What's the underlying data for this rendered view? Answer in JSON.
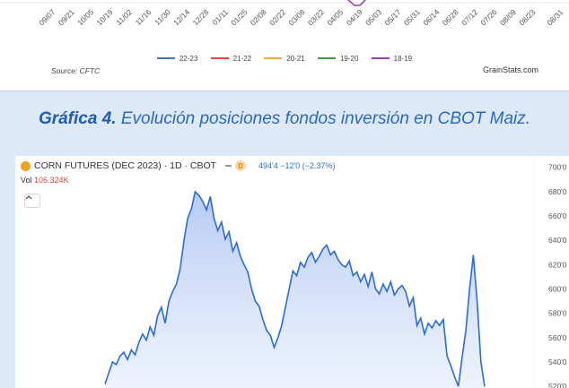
{
  "top_chart": {
    "x_ticks": [
      "09/07",
      "09/21",
      "10/05",
      "10/19",
      "11/02",
      "11/16",
      "11/30",
      "12/14",
      "12/28",
      "01/11",
      "01/25",
      "02/08",
      "02/22",
      "03/08",
      "03/22",
      "04/05",
      "04/19",
      "05/03",
      "05/17",
      "05/31",
      "06/14",
      "06/28",
      "07/12",
      "07/26",
      "08/09",
      "08/23",
      "08/31"
    ],
    "legend": [
      {
        "label": "22-23",
        "color": "#4472c4"
      },
      {
        "label": "21-22",
        "color": "#e0463b"
      },
      {
        "label": "20-21",
        "color": "#f1a93a"
      },
      {
        "label": "19-20",
        "color": "#3f9b3f"
      },
      {
        "label": "18-19",
        "color": "#9b3fb8"
      }
    ],
    "source": "Source: CFTC",
    "brand": "GrainStats.com"
  },
  "caption": {
    "label": "Gráfica 4.",
    "text": " Evolución posiciones fondos inversión en CBOT Maiz."
  },
  "tv": {
    "symbol_title": "CORN FUTURES (DEC 2023) · 1D · CBOT",
    "d_badge": "D",
    "ohlc": "494'4  −12'0  (−2.37%)",
    "vol_label": "Vol",
    "vol_value": "106.324K",
    "collapse_icon": "chevron-up-icon",
    "accent": "#2a6bd8"
  },
  "chart_data": {
    "type": "area",
    "title": "CORN FUTURES (DEC 2023) · 1D · CBOT",
    "y_ticks": [
      "700'0",
      "680'0",
      "660'0",
      "640'0",
      "620'0",
      "600'0",
      "580'0",
      "560'0",
      "540'0",
      "520'0"
    ],
    "ylim": [
      515,
      702
    ],
    "x_start_index": 100,
    "series": [
      {
        "values": [
          522,
          531,
          540,
          538,
          545,
          548,
          542,
          550,
          546,
          556,
          563,
          558,
          569,
          562,
          578,
          585,
          572,
          590,
          598,
          604,
          617,
          640,
          658,
          666,
          680,
          677,
          672,
          665,
          676,
          658,
          648,
          655,
          641,
          647,
          631,
          638,
          627,
          620,
          614,
          600,
          590,
          586,
          575,
          566,
          562,
          552,
          560,
          570,
          585,
          600,
          615,
          611,
          622,
          618,
          626,
          630,
          622,
          627,
          633,
          636,
          628,
          631,
          624,
          620,
          618,
          623,
          611,
          614,
          606,
          612,
          602,
          614,
          600,
          596,
          604,
          598,
          606,
          595,
          600,
          603,
          598,
          586,
          593,
          570,
          576,
          563,
          572,
          568,
          574,
          570,
          575,
          545,
          537,
          528,
          520,
          544,
          566,
          600,
          628,
          590,
          540,
          520
        ]
      }
    ]
  }
}
